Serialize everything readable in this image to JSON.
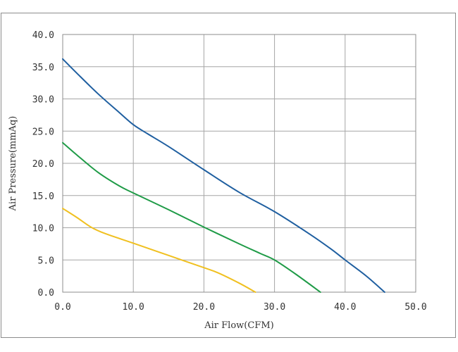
{
  "chart_data": {
    "type": "line",
    "title": "",
    "xlabel": "Air Flow(CFM)",
    "ylabel": "Air Pressure(mmAq)",
    "xlim": [
      0,
      50
    ],
    "ylim": [
      0,
      40
    ],
    "x_ticks": [
      0,
      10,
      20,
      30,
      40,
      50
    ],
    "y_ticks": [
      0,
      5,
      10,
      15,
      20,
      25,
      30,
      35,
      40
    ],
    "x_tick_labels": [
      "0.0",
      "10.0",
      "20.0",
      "30.0",
      "40.0",
      "50.0"
    ],
    "y_tick_labels": [
      "0.0",
      "5.0",
      "10.0",
      "15.0",
      "20.0",
      "25.0",
      "30.0",
      "35.0",
      "40.0"
    ],
    "grid": true,
    "legend": "none",
    "series": [
      {
        "color": "#1f5fa0",
        "points": [
          [
            0,
            36.2
          ],
          [
            2,
            34.0
          ],
          [
            5,
            30.8
          ],
          [
            8,
            27.9
          ],
          [
            10,
            26.0
          ],
          [
            12,
            24.6
          ],
          [
            15,
            22.6
          ],
          [
            20,
            19.0
          ],
          [
            25,
            15.5
          ],
          [
            30,
            12.5
          ],
          [
            35,
            9.0
          ],
          [
            38,
            6.7
          ],
          [
            40,
            5.0
          ],
          [
            43,
            2.5
          ],
          [
            45.6,
            0
          ]
        ]
      },
      {
        "color": "#1f9b47",
        "points": [
          [
            0,
            23.2
          ],
          [
            2,
            21.3
          ],
          [
            5,
            18.6
          ],
          [
            8,
            16.5
          ],
          [
            10,
            15.4
          ],
          [
            15,
            12.8
          ],
          [
            20,
            10.1
          ],
          [
            25,
            7.5
          ],
          [
            28,
            6.0
          ],
          [
            30,
            5.0
          ],
          [
            33,
            2.8
          ],
          [
            36.5,
            0
          ]
        ]
      },
      {
        "color": "#f0c020",
        "points": [
          [
            0,
            13.0
          ],
          [
            2,
            11.6
          ],
          [
            4,
            10.1
          ],
          [
            6,
            9.1
          ],
          [
            10,
            7.6
          ],
          [
            15,
            5.7
          ],
          [
            20,
            3.8
          ],
          [
            22,
            3.0
          ],
          [
            25,
            1.4
          ],
          [
            27.3,
            0
          ]
        ]
      }
    ]
  }
}
